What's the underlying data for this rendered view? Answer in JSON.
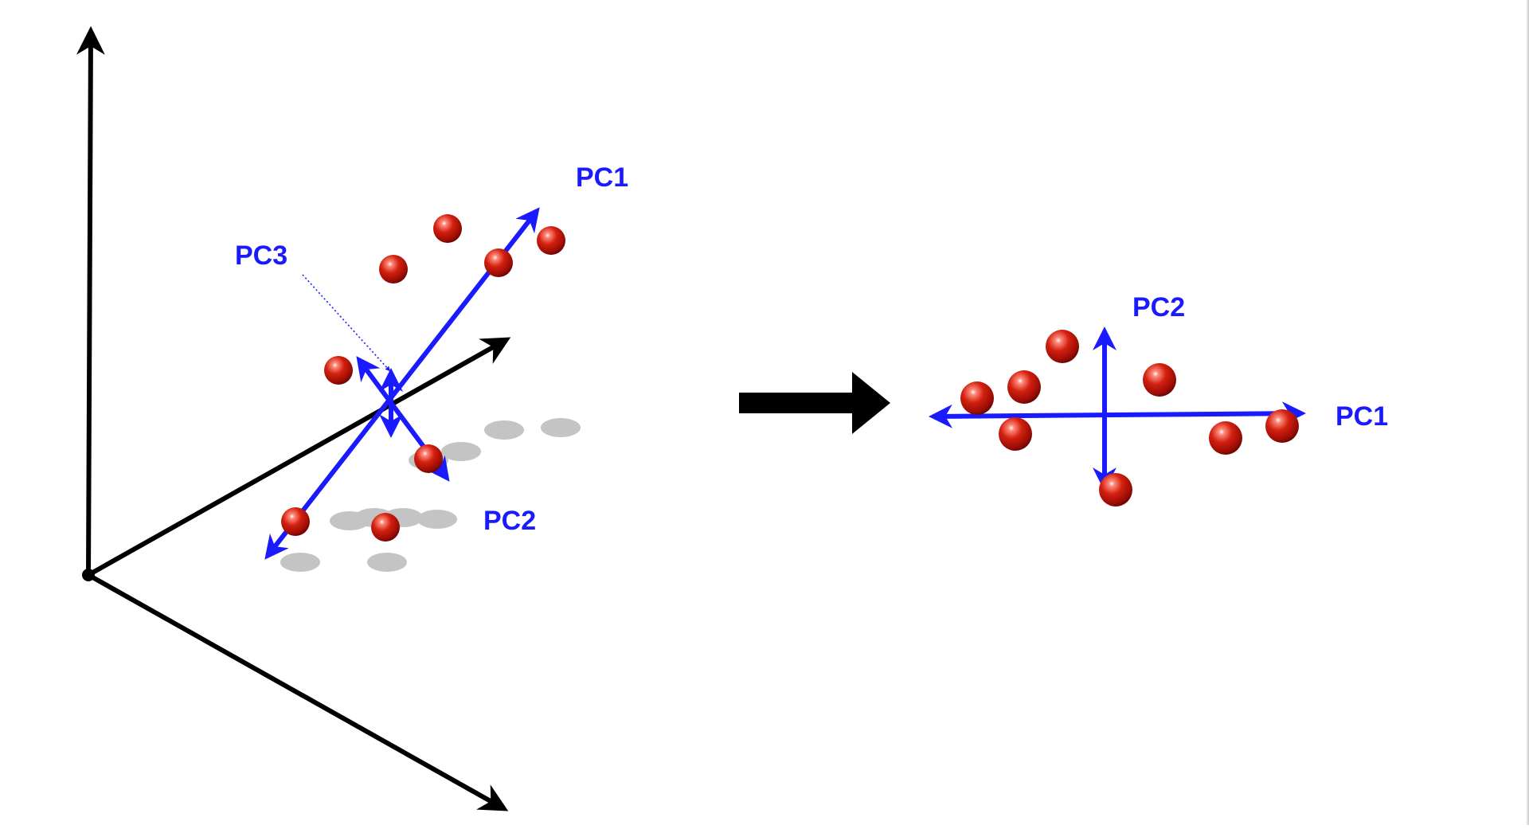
{
  "colors": {
    "axis": "#000000",
    "principal_component": "#1a1aff",
    "point": "#cc1a12",
    "shadow": "#c4c4c4"
  },
  "left_panel": {
    "pc1_label": "PC1",
    "pc2_label": "PC2",
    "pc3_label": "PC3",
    "point_count": 8,
    "shadow_count": 10
  },
  "transition_arrow": "arrow-right",
  "right_panel": {
    "pc1_label": "PC1",
    "pc2_label": "PC2",
    "point_count": 8
  }
}
